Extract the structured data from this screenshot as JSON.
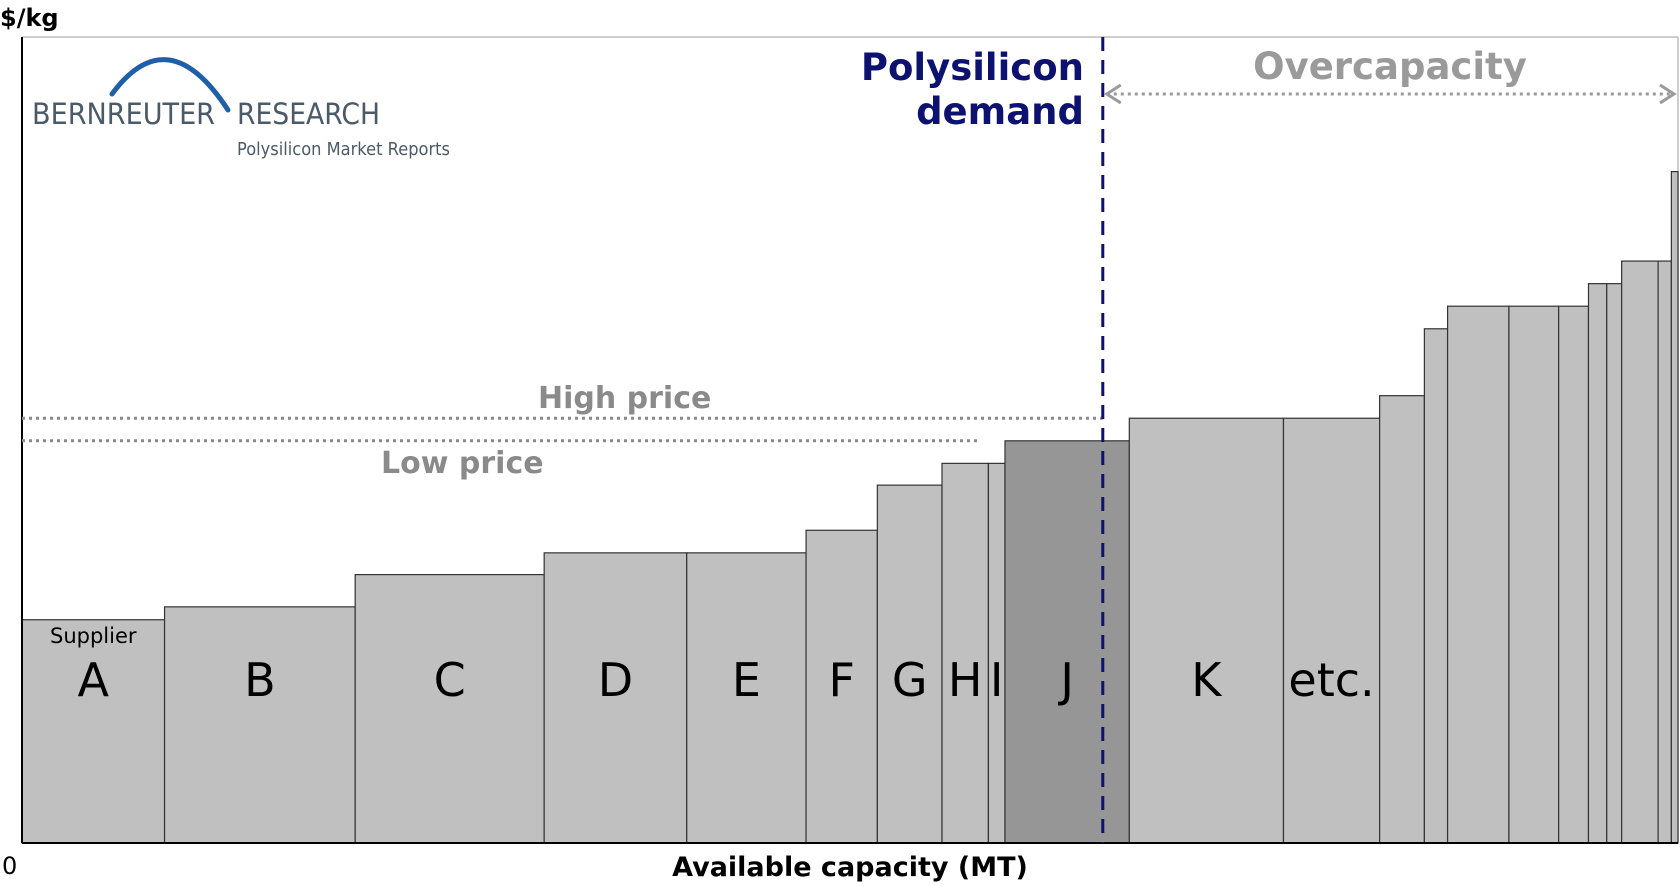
{
  "chart_data": {
    "type": "bar",
    "variant": "supply cost curve (variable-width bars)",
    "ylabel": "$/kg",
    "xlabel": "Available capacity (MT)",
    "x_origin_label": "0",
    "y_scale_note": "no numeric y ticks; values in relative units (0 = baseline, 100 = top of frame)",
    "x_scale_note": "no numeric x ticks; widths in relative capacity units (total 1000)",
    "segment_prefix_label": "Supplier",
    "segments": [
      {
        "label": "A",
        "width": 86,
        "value": 27.7
      },
      {
        "label": "B",
        "width": 115,
        "value": 29.3
      },
      {
        "label": "C",
        "width": 114,
        "value": 33.3
      },
      {
        "label": "D",
        "width": 86,
        "value": 36.0
      },
      {
        "label": "E",
        "width": 72,
        "value": 36.0
      },
      {
        "label": "F",
        "width": 43,
        "value": 38.8
      },
      {
        "label": "G",
        "width": 39,
        "value": 44.4
      },
      {
        "label": "H",
        "width": 28,
        "value": 47.1
      },
      {
        "label": "I",
        "width": 10,
        "value": 47.1
      },
      {
        "label": "J",
        "width": 75,
        "value": 49.9,
        "highlight": true
      },
      {
        "label": "K",
        "width": 93,
        "value": 52.7
      },
      {
        "label": "etc.",
        "width": 58,
        "value": 52.7
      },
      {
        "label": "",
        "width": 27,
        "value": 55.5
      },
      {
        "label": "",
        "width": 14,
        "value": 63.8
      },
      {
        "label": "",
        "width": 37,
        "value": 66.6
      },
      {
        "label": "",
        "width": 30,
        "value": 66.6
      },
      {
        "label": "",
        "width": 18,
        "value": 66.6
      },
      {
        "label": "",
        "width": 11,
        "value": 69.4
      },
      {
        "label": "",
        "width": 9,
        "value": 69.4
      },
      {
        "label": "",
        "width": 22,
        "value": 72.2
      },
      {
        "label": "",
        "width": 8,
        "value": 72.2
      },
      {
        "label": "",
        "width": 4,
        "value": 83.3
      }
    ],
    "reference_lines": {
      "high_price": {
        "label": "High price",
        "value": 52.7
      },
      "low_price": {
        "label": "Low price",
        "value": 49.9
      }
    },
    "demand": {
      "label_line1": "Polysilicon",
      "label_line2": "demand",
      "x": 652
    },
    "overcapacity_label": "Overcapacity",
    "colors": {
      "bar": "#c0c0c0",
      "highlight_bar": "#969696",
      "demand": "#0d1270",
      "annotation_gray": "#8a8a8a",
      "logo": "#4a5a68",
      "logo_arc": "#1f5fa8"
    }
  },
  "logo": {
    "word1": "BERNREUTER",
    "word2": "RESEARCH",
    "subtitle": "Polysilicon Market Reports"
  }
}
